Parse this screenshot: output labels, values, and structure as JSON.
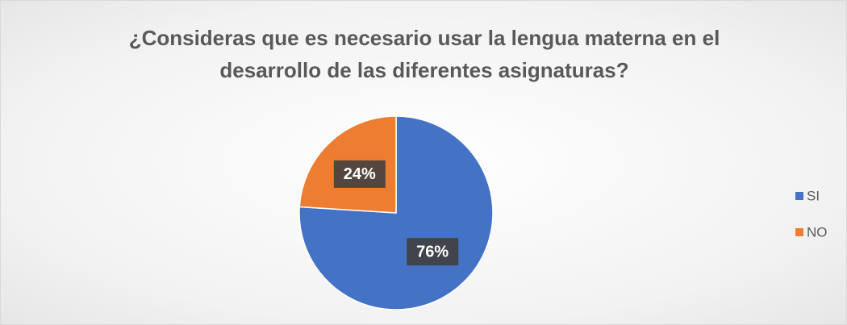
{
  "chart_data": {
    "type": "pie",
    "title": "¿Consideras que es necesario usar la lengua materna en el desarrollo de las diferentes asignaturas?",
    "categories": [
      "SI",
      "NO"
    ],
    "values": [
      76,
      24
    ],
    "value_labels": [
      "76%",
      "24%"
    ],
    "colors": [
      "#4472c4",
      "#ed7d31"
    ],
    "legend": "right"
  }
}
